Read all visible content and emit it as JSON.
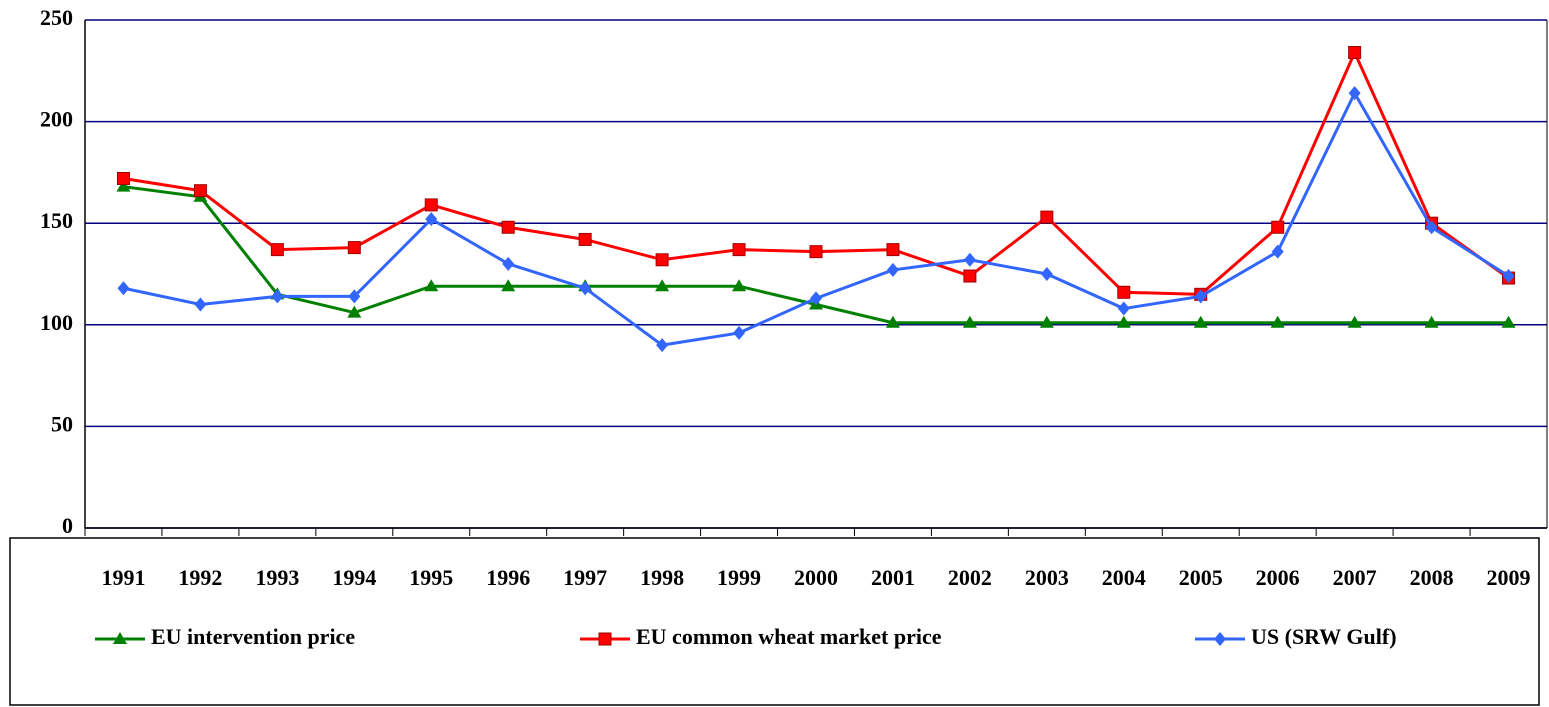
{
  "chart_data": {
    "type": "line",
    "categories": [
      "1991",
      "1992",
      "1993",
      "1994",
      "1995",
      "1996",
      "1997",
      "1998",
      "1999",
      "2000",
      "2001",
      "2002",
      "2003",
      "2004",
      "2005",
      "2006",
      "2007",
      "2008",
      "2009"
    ],
    "series": [
      {
        "name": "EU intervention price",
        "color": "#008000",
        "marker": "triangle",
        "values": [
          168,
          163,
          115,
          106,
          119,
          119,
          119,
          119,
          119,
          110,
          101,
          101,
          101,
          101,
          101,
          101,
          101,
          101,
          101
        ]
      },
      {
        "name": "EU common wheat market price",
        "color": "#ff0000",
        "marker": "square",
        "values": [
          172,
          166,
          137,
          138,
          159,
          148,
          142,
          132,
          137,
          136,
          137,
          124,
          153,
          116,
          115,
          148,
          234,
          150,
          123
        ]
      },
      {
        "name": "US (SRW Gulf)",
        "color": "#3366ff",
        "marker": "diamond",
        "values": [
          118,
          110,
          114,
          114,
          152,
          130,
          118,
          90,
          96,
          113,
          127,
          132,
          125,
          108,
          114,
          136,
          214,
          148,
          124
        ]
      }
    ],
    "ylim": [
      0,
      250
    ],
    "yticks": [
      0,
      50,
      100,
      150,
      200,
      250
    ],
    "grid": true,
    "legend": "bottom"
  }
}
